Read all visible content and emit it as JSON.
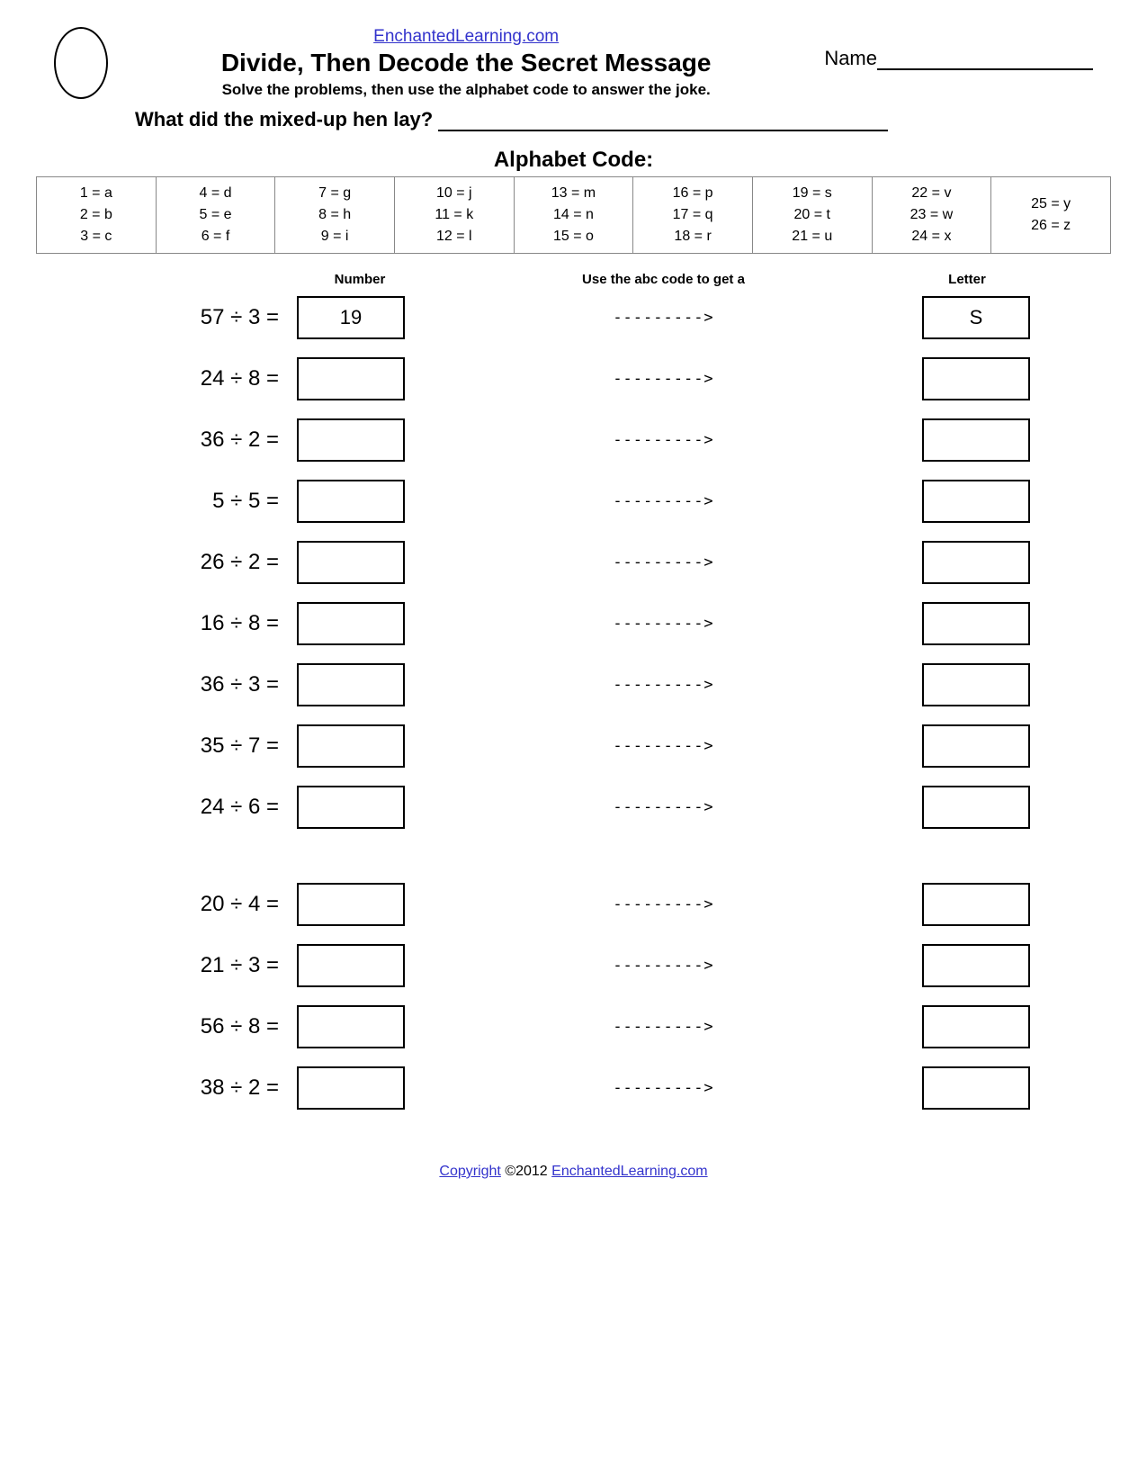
{
  "header": {
    "site": "EnchantedLearning.com",
    "title": "Divide, Then Decode the Secret Message",
    "instructions": "Solve the problems, then use the alphabet code to answer the joke.",
    "name_label": "Name",
    "question": "What did the mixed-up hen lay? "
  },
  "code": {
    "title": "Alphabet Code:",
    "columns": [
      [
        "1 = a",
        "2 = b",
        "3 = c"
      ],
      [
        "4 = d",
        "5 = e",
        "6 = f"
      ],
      [
        "7 = g",
        "8 = h",
        "9 = i"
      ],
      [
        "10 = j",
        "11 = k",
        "12 = l"
      ],
      [
        "13 = m",
        "14 = n",
        "15 = o"
      ],
      [
        "16 = p",
        "17 = q",
        "18 = r"
      ],
      [
        "19 = s",
        "20 = t",
        "21 = u"
      ],
      [
        "22 = v",
        "23 = w",
        "24 = x"
      ],
      [
        "25 = y",
        "26 = z"
      ]
    ]
  },
  "column_headers": {
    "number": "Number",
    "arrow_instruction": "Use the abc code to get a",
    "letter": "Letter"
  },
  "arrow_text": "--------->",
  "problems": {
    "group1": [
      {
        "expr": "57 ÷ 3 =",
        "number": "19",
        "letter": "S"
      },
      {
        "expr": "24 ÷ 8 =",
        "number": "",
        "letter": ""
      },
      {
        "expr": "36 ÷ 2 =",
        "number": "",
        "letter": ""
      },
      {
        "expr": "5 ÷ 5 =",
        "number": "",
        "letter": ""
      },
      {
        "expr": "26 ÷ 2 =",
        "number": "",
        "letter": ""
      },
      {
        "expr": "16 ÷ 8 =",
        "number": "",
        "letter": ""
      },
      {
        "expr": "36 ÷ 3 =",
        "number": "",
        "letter": ""
      },
      {
        "expr": "35 ÷ 7 =",
        "number": "",
        "letter": ""
      },
      {
        "expr": "24 ÷ 6 =",
        "number": "",
        "letter": ""
      }
    ],
    "group2": [
      {
        "expr": "20 ÷ 4 =",
        "number": "",
        "letter": ""
      },
      {
        "expr": "21 ÷ 3 =",
        "number": "",
        "letter": ""
      },
      {
        "expr": "56 ÷ 8 =",
        "number": "",
        "letter": ""
      },
      {
        "expr": "38 ÷ 2 =",
        "number": "",
        "letter": ""
      }
    ]
  },
  "footer": {
    "copyright_link": "Copyright",
    "copyright_text": " ©2012 ",
    "site_link": "EnchantedLearning.com"
  }
}
